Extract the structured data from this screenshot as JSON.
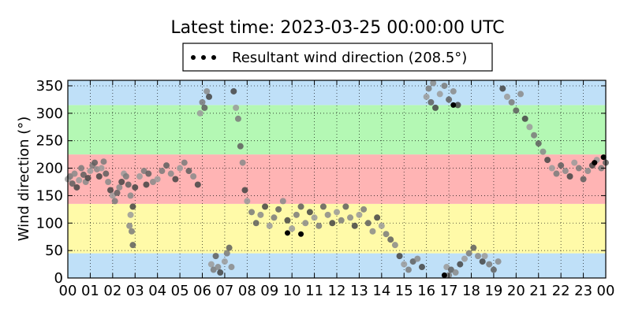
{
  "chart_data": {
    "type": "scatter",
    "title": "Latest time: 2023-03-25 00:00:00 UTC",
    "xlabel": "",
    "ylabel": "Wind direction (°)",
    "xlim": [
      0,
      24
    ],
    "ylim": [
      0,
      360
    ],
    "xticks": [
      "00",
      "01",
      "02",
      "03",
      "04",
      "05",
      "06",
      "07",
      "08",
      "09",
      "10",
      "11",
      "12",
      "13",
      "14",
      "15",
      "16",
      "17",
      "18",
      "19",
      "20",
      "21",
      "22",
      "23",
      "00"
    ],
    "yticks": [
      0,
      50,
      100,
      150,
      200,
      250,
      300,
      350
    ],
    "grid": true,
    "legend": {
      "placement": "top-center",
      "label": "Resultant wind direction (208.5°)"
    },
    "background_bands": [
      {
        "from": 0,
        "to": 45,
        "color": "#bfe0f8"
      },
      {
        "from": 45,
        "to": 135,
        "color": "#fffaa8"
      },
      {
        "from": 135,
        "to": 225,
        "color": "#ffb4b4"
      },
      {
        "from": 225,
        "to": 315,
        "color": "#b4f8b4"
      },
      {
        "from": 315,
        "to": 360,
        "color": "#bfe0f8"
      }
    ],
    "series": [
      {
        "values": [
          [
            0.0,
            180
          ],
          [
            0.1,
            185
          ],
          [
            0.2,
            172
          ],
          [
            0.3,
            190
          ],
          [
            0.4,
            165
          ],
          [
            0.5,
            178
          ],
          [
            0.6,
            200
          ],
          [
            0.7,
            188
          ],
          [
            0.8,
            175
          ],
          [
            0.9,
            182
          ],
          [
            1.0,
            195
          ],
          [
            1.1,
            205
          ],
          [
            1.2,
            210
          ],
          [
            1.3,
            198
          ],
          [
            1.4,
            185
          ],
          [
            1.5,
            200
          ],
          [
            1.6,
            212
          ],
          [
            1.7,
            190
          ],
          [
            1.8,
            175
          ],
          [
            1.9,
            160
          ],
          [
            2.0,
            150
          ],
          [
            2.1,
            140
          ],
          [
            2.2,
            155
          ],
          [
            2.3,
            165
          ],
          [
            2.4,
            175
          ],
          [
            2.5,
            190
          ],
          [
            2.6,
            185
          ],
          [
            2.7,
            170
          ],
          [
            2.8,
            150
          ],
          [
            2.9,
            130
          ],
          [
            2.8,
            115
          ],
          [
            2.85,
            85
          ],
          [
            2.9,
            60
          ],
          [
            2.75,
            95
          ],
          [
            3.0,
            165
          ],
          [
            3.2,
            185
          ],
          [
            3.4,
            195
          ],
          [
            3.6,
            190
          ],
          [
            3.8,
            175
          ],
          [
            3.5,
            170
          ],
          [
            4.0,
            180
          ],
          [
            4.2,
            195
          ],
          [
            4.4,
            205
          ],
          [
            4.6,
            190
          ],
          [
            4.8,
            180
          ],
          [
            5.0,
            200
          ],
          [
            5.2,
            210
          ],
          [
            5.4,
            195
          ],
          [
            5.6,
            185
          ],
          [
            5.8,
            170
          ],
          [
            5.9,
            300
          ],
          [
            6.0,
            320
          ],
          [
            6.1,
            310
          ],
          [
            6.2,
            340
          ],
          [
            6.3,
            330
          ],
          [
            6.4,
            25
          ],
          [
            6.5,
            15
          ],
          [
            6.6,
            40
          ],
          [
            6.7,
            20
          ],
          [
            6.8,
            10
          ],
          [
            7.0,
            30
          ],
          [
            7.1,
            45
          ],
          [
            7.2,
            55
          ],
          [
            7.3,
            20
          ],
          [
            7.4,
            340
          ],
          [
            7.5,
            310
          ],
          [
            7.6,
            290
          ],
          [
            7.7,
            240
          ],
          [
            7.8,
            210
          ],
          [
            7.9,
            160
          ],
          [
            8.0,
            140
          ],
          [
            8.2,
            120
          ],
          [
            8.4,
            100
          ],
          [
            8.6,
            115
          ],
          [
            8.8,
            130
          ],
          [
            9.0,
            95
          ],
          [
            9.2,
            110
          ],
          [
            9.4,
            125
          ],
          [
            9.6,
            140
          ],
          [
            9.8,
            105
          ],
          [
            10.0,
            90
          ],
          [
            10.2,
            115
          ],
          [
            10.4,
            130
          ],
          [
            10.6,
            100
          ],
          [
            10.8,
            120
          ],
          [
            11.0,
            110
          ],
          [
            11.2,
            95
          ],
          [
            11.4,
            130
          ],
          [
            11.6,
            115
          ],
          [
            11.8,
            100
          ],
          [
            12.0,
            120
          ],
          [
            12.2,
            105
          ],
          [
            12.4,
            130
          ],
          [
            12.6,
            110
          ],
          [
            12.8,
            95
          ],
          [
            13.0,
            115
          ],
          [
            13.2,
            125
          ],
          [
            13.4,
            100
          ],
          [
            13.6,
            85
          ],
          [
            13.8,
            110
          ],
          [
            14.0,
            95
          ],
          [
            14.2,
            80
          ],
          [
            14.4,
            70
          ],
          [
            14.6,
            60
          ],
          [
            14.8,
            40
          ],
          [
            15.0,
            25
          ],
          [
            15.2,
            15
          ],
          [
            15.4,
            30
          ],
          [
            15.6,
            35
          ],
          [
            15.8,
            20
          ],
          [
            16.0,
            330
          ],
          [
            16.1,
            345
          ],
          [
            16.2,
            320
          ],
          [
            16.3,
            355
          ],
          [
            16.4,
            310
          ],
          [
            16.6,
            335
          ],
          [
            16.8,
            350
          ],
          [
            17.0,
            325
          ],
          [
            17.2,
            340
          ],
          [
            17.4,
            315
          ],
          [
            16.9,
            20
          ],
          [
            17.0,
            5
          ],
          [
            17.1,
            15
          ],
          [
            17.3,
            10
          ],
          [
            17.5,
            25
          ],
          [
            17.7,
            35
          ],
          [
            17.9,
            45
          ],
          [
            18.1,
            55
          ],
          [
            18.3,
            40
          ],
          [
            18.5,
            30
          ],
          [
            18.6,
            40
          ],
          [
            18.8,
            25
          ],
          [
            19.0,
            15
          ],
          [
            19.2,
            30
          ],
          [
            19.4,
            345
          ],
          [
            19.6,
            330
          ],
          [
            19.8,
            320
          ],
          [
            20.0,
            305
          ],
          [
            20.2,
            335
          ],
          [
            20.4,
            290
          ],
          [
            20.6,
            275
          ],
          [
            20.8,
            260
          ],
          [
            21.0,
            245
          ],
          [
            21.2,
            230
          ],
          [
            21.4,
            215
          ],
          [
            21.6,
            200
          ],
          [
            21.8,
            190
          ],
          [
            22.0,
            205
          ],
          [
            22.2,
            195
          ],
          [
            22.4,
            185
          ],
          [
            22.6,
            210
          ],
          [
            22.8,
            200
          ],
          [
            23.0,
            180
          ],
          [
            23.2,
            195
          ],
          [
            23.4,
            205
          ],
          [
            23.6,
            215
          ],
          [
            23.8,
            200
          ],
          [
            24.0,
            210
          ]
        ]
      },
      {
        "values": [
          [
            9.8,
            82
          ],
          [
            10.4,
            80
          ],
          [
            17.2,
            315
          ],
          [
            16.8,
            5
          ],
          [
            23.5,
            210
          ],
          [
            23.9,
            220
          ]
        ]
      }
    ]
  }
}
